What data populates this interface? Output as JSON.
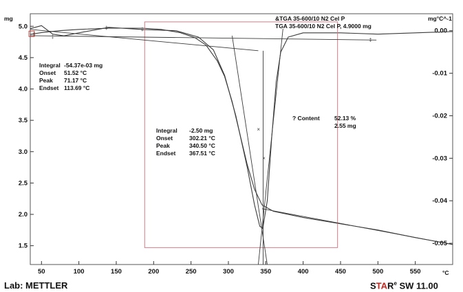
{
  "chart_data": {
    "type": "line",
    "xlabel": "°C",
    "ylabel_left": "mg",
    "ylabel_right": "mg°C^-1",
    "x_ticks": [
      50,
      100,
      150,
      200,
      250,
      300,
      350,
      400,
      450,
      500,
      550
    ],
    "y_left_ticks": [
      "1.5",
      "2.0",
      "2.5",
      "3.0",
      "3.5",
      "4.0",
      "4.5",
      "5.0"
    ],
    "y_right_ticks": [
      "0.00",
      "-0.01",
      "-0.02",
      "-0.03",
      "-0.04",
      "-0.05"
    ],
    "xlim": [
      35,
      600
    ],
    "ylim_left": [
      1.2,
      5.2
    ],
    "ylim_right": [
      -0.055,
      0.004
    ],
    "legend": [
      "&TGA 35-600/10 N2 Cel P",
      "TGA 35-600/10 N2 Cel P, 4.9000 mg"
    ],
    "series": [
      {
        "name": "TGA 35-600/10 N2 Cel P, 4.9000 mg",
        "axis": "left",
        "points": [
          [
            35,
            4.87
          ],
          [
            50,
            4.9
          ],
          [
            75,
            4.93
          ],
          [
            100,
            4.95
          ],
          [
            140,
            4.97
          ],
          [
            185,
            4.97
          ],
          [
            210,
            4.95
          ],
          [
            235,
            4.9
          ],
          [
            255,
            4.82
          ],
          [
            270,
            4.7
          ],
          [
            285,
            4.45
          ],
          [
            295,
            4.2
          ],
          [
            305,
            3.8
          ],
          [
            315,
            3.3
          ],
          [
            325,
            2.8
          ],
          [
            335,
            2.4
          ],
          [
            345,
            2.15
          ],
          [
            360,
            2.05
          ],
          [
            400,
            1.95
          ],
          [
            450,
            1.85
          ],
          [
            500,
            1.75
          ],
          [
            550,
            1.63
          ],
          [
            600,
            1.52
          ]
        ]
      },
      {
        "name": "&TGA 35-600/10 N2 Cel P",
        "axis": "right",
        "points": [
          [
            35,
            0.0005
          ],
          [
            50,
            0.0012
          ],
          [
            65,
            -0.0008
          ],
          [
            80,
            -0.0012
          ],
          [
            100,
            -0.0005
          ],
          [
            140,
            0.0008
          ],
          [
            185,
            0.0003
          ],
          [
            230,
            0.0
          ],
          [
            260,
            -0.0015
          ],
          [
            280,
            -0.0045
          ],
          [
            295,
            -0.0105
          ],
          [
            310,
            -0.02
          ],
          [
            325,
            -0.032
          ],
          [
            335,
            -0.041
          ],
          [
            342,
            -0.046
          ],
          [
            346,
            -0.0465
          ],
          [
            352,
            -0.04
          ],
          [
            358,
            -0.025
          ],
          [
            364,
            -0.012
          ],
          [
            370,
            -0.005
          ],
          [
            380,
            -0.0015
          ],
          [
            400,
            -0.0005
          ],
          [
            450,
            -0.0005
          ],
          [
            500,
            -0.0008
          ],
          [
            550,
            -0.0005
          ],
          [
            600,
            -0.0002
          ]
        ]
      }
    ]
  },
  "annotations": {
    "step1": {
      "integral_label": "Integral",
      "integral_value": "-54.37e-03 mg",
      "onset_label": "Onset",
      "onset_value": "51.52 °C",
      "peak_label": "Peak",
      "peak_value": "71.17 °C",
      "endset_label": "Endset",
      "endset_value": "113.69 °C"
    },
    "step2": {
      "integral_label": "Integral",
      "integral_value": "-2.50 mg",
      "onset_label": "Onset",
      "onset_value": "302.21 °C",
      "peak_label": "Peak",
      "peak_value": "340.50 °C",
      "endset_label": "Endset",
      "endset_value": "367.51 °C"
    },
    "content": {
      "label": "? Content",
      "percent": "52.13 %",
      "mass": "2.55 mg"
    }
  },
  "footer": {
    "lab": "Lab: METTLER",
    "software_s": "S",
    "software_ta": "TA",
    "software_r": "R",
    "software_e": "e",
    "software_rest": " SW 11.00"
  },
  "colors": {
    "curve": "#3a3a3a",
    "box": "#d77a85",
    "star_accent": "#c0281f"
  }
}
